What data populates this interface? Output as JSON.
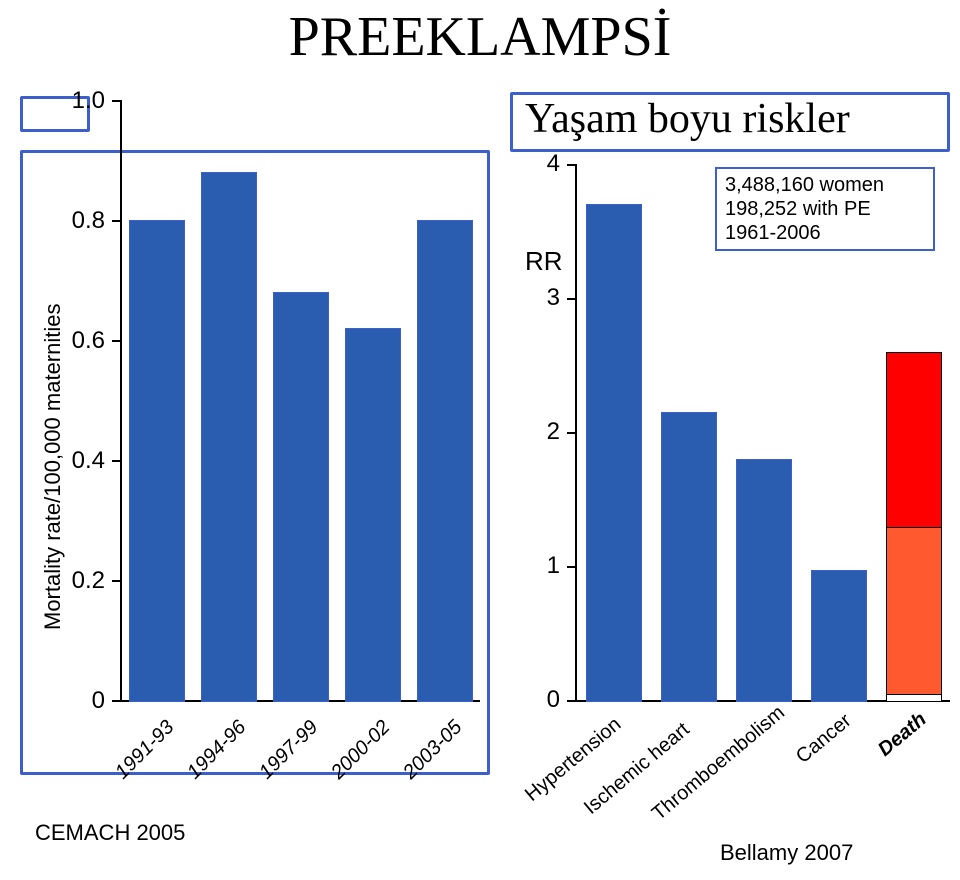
{
  "title": "PREEKLAMPSİ",
  "left": {
    "ylabel": "Mortality rate/100,000 maternities",
    "yticks": [
      "0",
      "0.2",
      "0.4",
      "0.6",
      "0.8",
      "1.0"
    ],
    "ymax": 1.0,
    "categories": [
      "1991-93",
      "1994-96",
      "1997-99",
      "2000-02",
      "2003-05"
    ],
    "values": [
      0.8,
      0.88,
      0.68,
      0.62,
      0.8
    ],
    "bar_color": "#2a5db0",
    "bar_stroke": "#3d5fcc",
    "tick_color": "#000000",
    "grid_color": "#000000",
    "footer": "CEMACH 2005",
    "border_color": "#3d5fcc"
  },
  "right": {
    "title": "Yaşam boyu riskler",
    "rr_label": "RR",
    "yticks": [
      "0",
      "1",
      "2",
      "3",
      "4"
    ],
    "ymax": 4.0,
    "categories": [
      "Hypertension",
      "Ischemic heart",
      "Thromboembolism",
      "Cancer",
      "Death"
    ],
    "values": [
      3.7,
      2.15,
      1.8,
      0.97,
      2.6
    ],
    "bar_colors": [
      "#2a5db0",
      "#2a5db0",
      "#2a5db0",
      "#2a5db0",
      null
    ],
    "stacked_last": {
      "segments": [
        {
          "height": 0.05,
          "color": "#ffffff"
        },
        {
          "height": 1.25,
          "color": "#ff5a2f"
        },
        {
          "height": 1.3,
          "color": "#ff0000"
        }
      ]
    },
    "note": [
      "3,488,160 women",
      "198,252 with PE",
      "1961-2006"
    ],
    "footer": "Bellamy 2007",
    "border_color": "#3d5fcc"
  }
}
